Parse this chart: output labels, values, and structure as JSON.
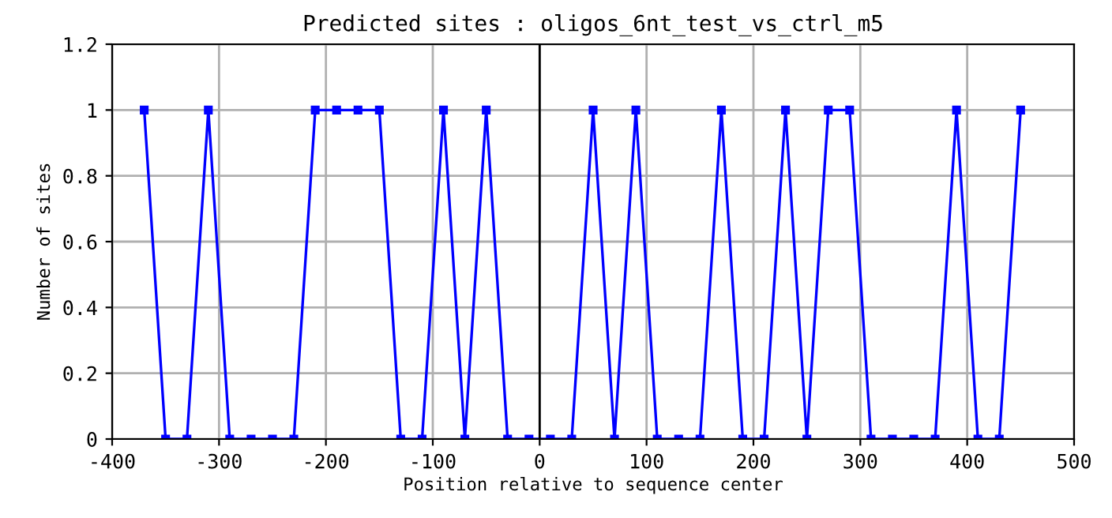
{
  "chart_data": {
    "type": "line",
    "title": "Predicted sites : oligos_6nt_test_vs_ctrl_m5",
    "xlabel": "Position relative to sequence center",
    "ylabel": "Number of sites",
    "series": [
      {
        "color": "#0000ff",
        "x": [
          -370,
          -350,
          -330,
          -310,
          -290,
          -270,
          -250,
          -230,
          -210,
          -190,
          -170,
          -150,
          -130,
          -110,
          -90,
          -70,
          -50,
          -30,
          -10,
          10,
          30,
          50,
          70,
          90,
          110,
          130,
          150,
          170,
          190,
          210,
          230,
          250,
          270,
          290,
          310,
          330,
          350,
          370,
          390,
          410,
          430,
          450
        ],
        "values": [
          1,
          0,
          0,
          1,
          0,
          0,
          0,
          0,
          1,
          1,
          1,
          1,
          0,
          0,
          1,
          0,
          1,
          0,
          0,
          0,
          0,
          1,
          0,
          1,
          0,
          0,
          0,
          1,
          0,
          0,
          1,
          0,
          1,
          1,
          0,
          0,
          0,
          0,
          1,
          0,
          0,
          1
        ]
      }
    ],
    "xlim": [
      -400,
      500
    ],
    "xticks": [
      -400,
      -300,
      -200,
      -100,
      0,
      100,
      200,
      300,
      400,
      500
    ],
    "ylim": [
      0,
      1.2
    ],
    "yticks": [
      0,
      0.2,
      0.4,
      0.6,
      0.8,
      1,
      1.2
    ],
    "ref_lines": [
      {
        "axis": "x",
        "value": 0,
        "color": "#000000"
      }
    ],
    "grid": true,
    "marker": "square",
    "line_style": "solid",
    "legend": false
  }
}
